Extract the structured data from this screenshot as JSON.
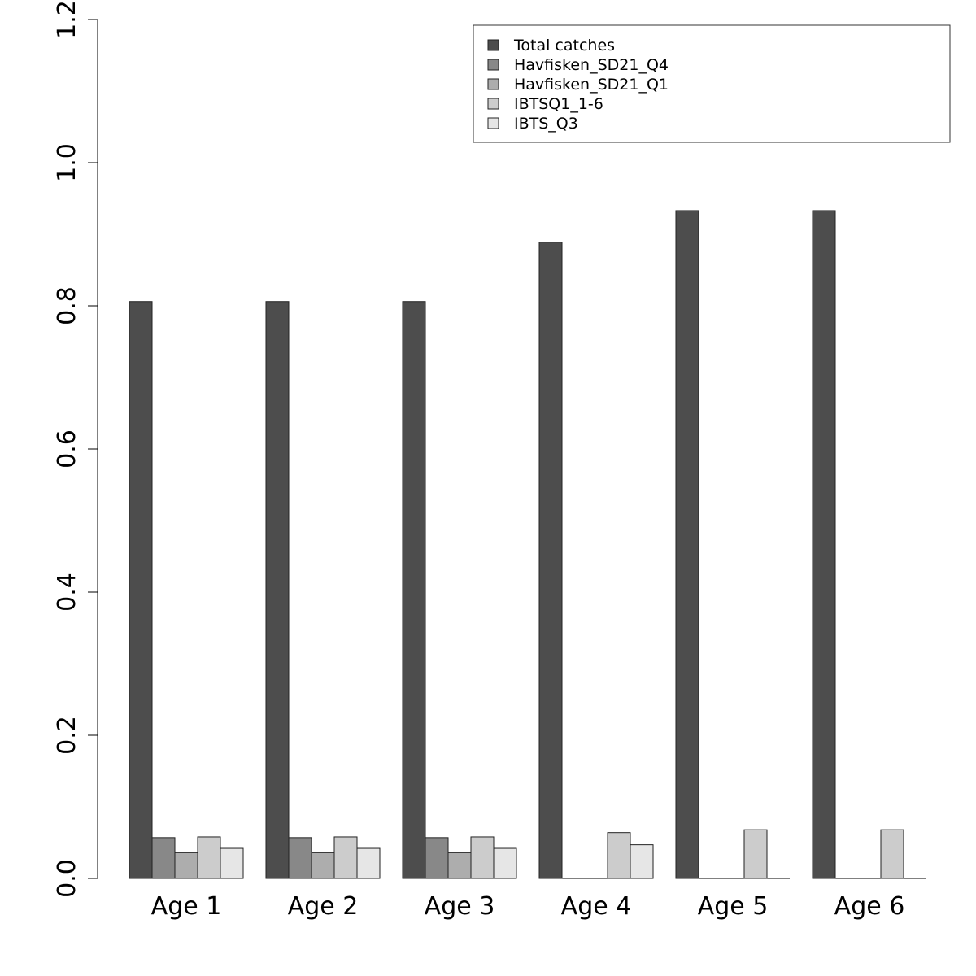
{
  "chart_data": {
    "type": "bar",
    "categories": [
      "Age 1",
      "Age 2",
      "Age 3",
      "Age 4",
      "Age 5",
      "Age 6"
    ],
    "series": [
      {
        "name": "Total catches",
        "color": "#4d4d4d",
        "values": [
          0.806,
          0.806,
          0.806,
          0.889,
          0.933,
          0.933
        ]
      },
      {
        "name": "Havfisken_SD21_Q4",
        "color": "#888888",
        "values": [
          0.057,
          0.057,
          0.057,
          0,
          0,
          0
        ]
      },
      {
        "name": "Havfisken_SD21_Q1",
        "color": "#adadad",
        "values": [
          0.036,
          0.036,
          0.036,
          0,
          0,
          0
        ]
      },
      {
        "name": "IBTSQ1_1-6",
        "color": "#cccccc",
        "values": [
          0.058,
          0.058,
          0.058,
          0.064,
          0.068,
          0.068
        ]
      },
      {
        "name": "IBTS_Q3",
        "color": "#e6e6e6",
        "values": [
          0.042,
          0.042,
          0.042,
          0.047,
          0,
          0
        ]
      }
    ],
    "yticks": [
      "0.0",
      "0.2",
      "0.4",
      "0.6",
      "0.8",
      "1.0",
      "1.2"
    ],
    "ylim": [
      0,
      1.2
    ],
    "title": "",
    "xlabel": "",
    "ylabel": "",
    "legend_position": "top-right",
    "grid": false
  }
}
